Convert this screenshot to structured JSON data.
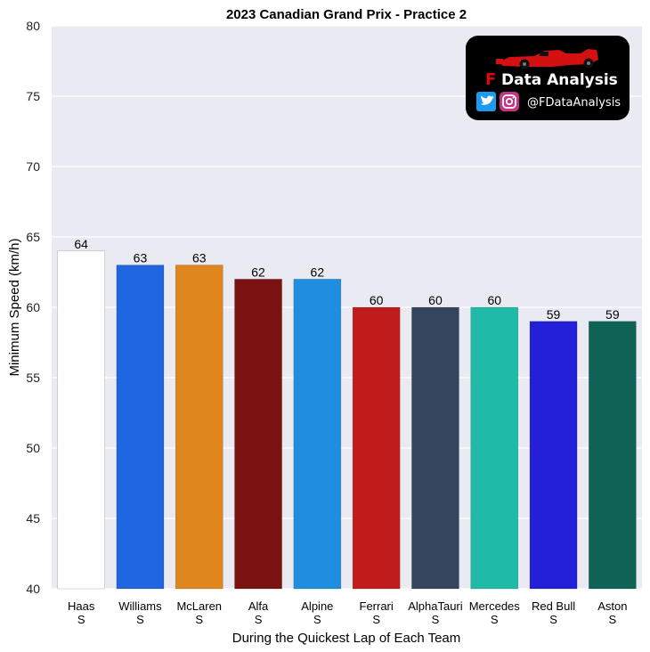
{
  "chart_data": {
    "type": "bar",
    "title": "2023 Canadian Grand Prix - Practice 2",
    "xlabel": "During the Quickest Lap of Each Team",
    "ylabel": "Minimum Speed (km/h)",
    "ylim": [
      40,
      80
    ],
    "yticks": [
      40,
      45,
      50,
      55,
      60,
      65,
      70,
      75,
      80
    ],
    "grid": true,
    "categories": [
      "Haas",
      "Williams",
      "McLaren",
      "Alfa",
      "Alpine",
      "Ferrari",
      "AlphaTauri",
      "Mercedes",
      "Red Bull",
      "Aston"
    ],
    "subcategories": [
      "S",
      "S",
      "S",
      "S",
      "S",
      "S",
      "S",
      "S",
      "S",
      "S"
    ],
    "values": [
      64,
      63,
      63,
      62,
      62,
      60,
      60,
      60,
      59,
      59
    ],
    "value_labels": [
      "64",
      "63",
      "63",
      "62",
      "62",
      "60",
      "60",
      "60",
      "59",
      "59"
    ],
    "colors": [
      "#ffffff",
      "#1f66e0",
      "#e0861f",
      "#7a1212",
      "#1f8ee0",
      "#c01c1c",
      "#34465e",
      "#1fbaa8",
      "#2320d8",
      "#0e6356"
    ]
  },
  "logo": {
    "letter": "F",
    "title": "Data Analysis",
    "handle": "@FDataAnalysis",
    "background": "#000000",
    "twitter_color": "#1d9bf0",
    "instagram_color": "#c13584",
    "car_color": "#d41010"
  },
  "style": {
    "plot_background": "#eaeaf2",
    "grid_color": "#ffffff"
  }
}
